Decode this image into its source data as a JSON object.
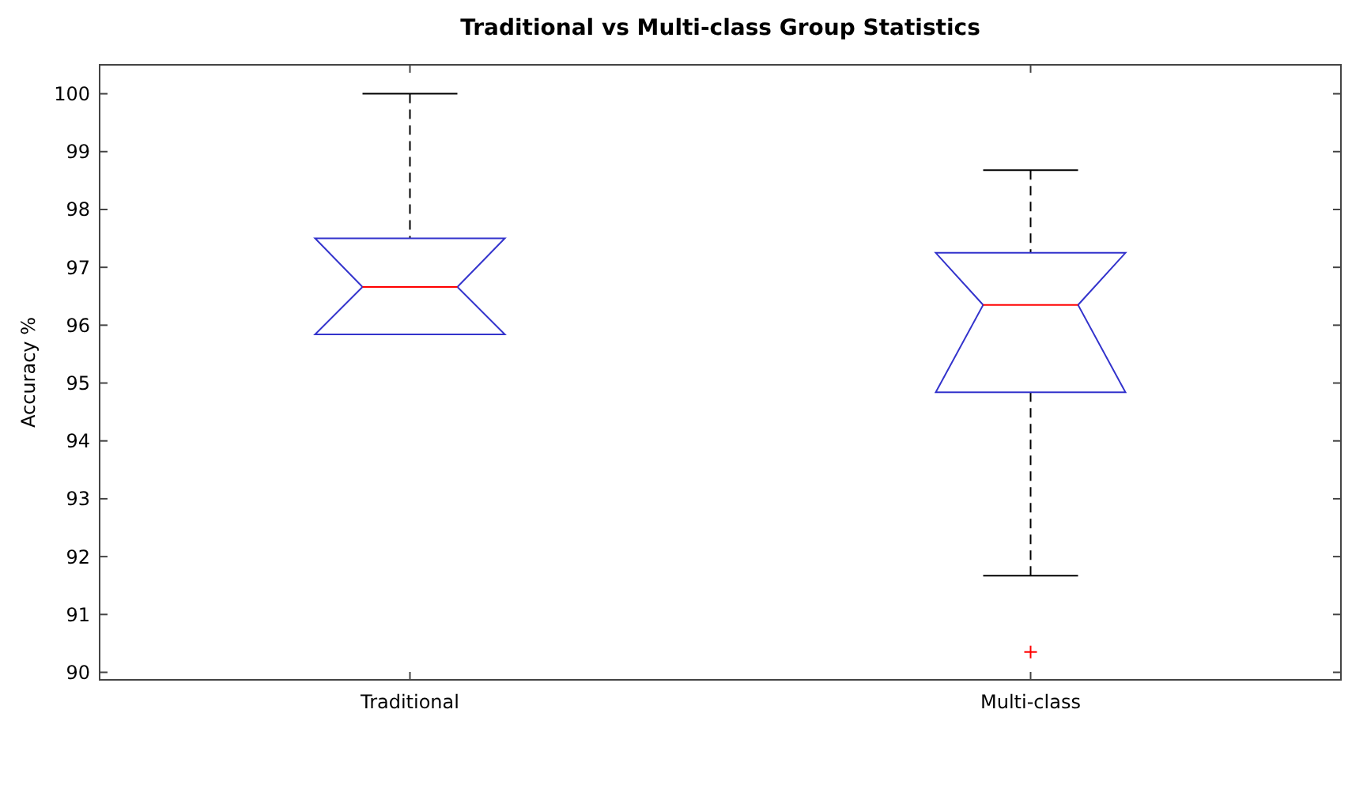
{
  "chart_data": {
    "type": "box",
    "title": "Traditional vs Multi-class Group Statistics",
    "ylabel": "Accuracy %",
    "categories": [
      "Traditional",
      "Multi-class"
    ],
    "boxes": [
      {
        "low": 95.84,
        "q1": 95.84,
        "median": 96.66,
        "q3": 97.5,
        "high": 100
      },
      {
        "low": 91.67,
        "q1": 94.84,
        "median": 96.35,
        "q3": 97.25,
        "high": 98.68,
        "outliers": [
          90.35
        ]
      }
    ],
    "color": "#3333cc",
    "ylim": [
      89.87,
      100.5
    ],
    "yticks": [
      90,
      91,
      92,
      93,
      94,
      95,
      96,
      97,
      98,
      99,
      100
    ],
    "grid": false
  }
}
